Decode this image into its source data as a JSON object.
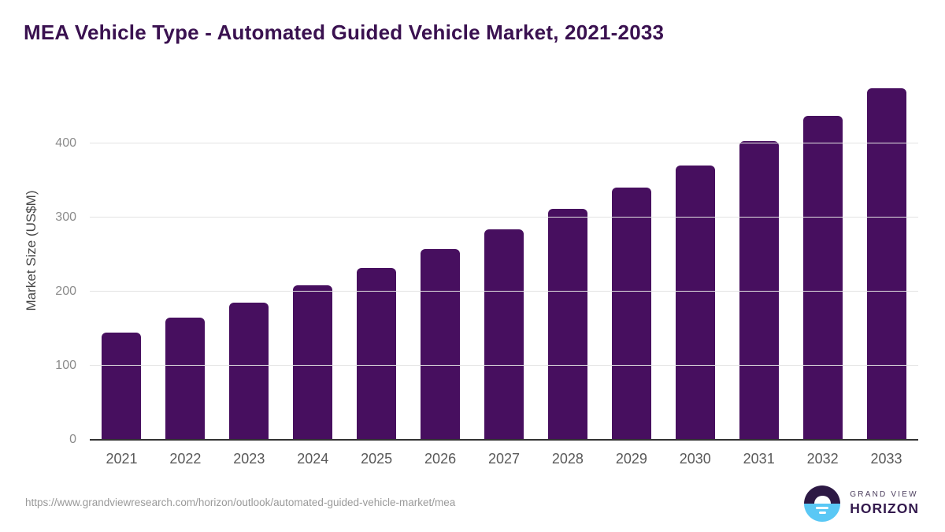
{
  "header": {
    "title": "MEA Vehicle Type - Automated Guided Vehicle Market, 2021-2033",
    "title_color": "#3a1150"
  },
  "chart_data": {
    "type": "bar",
    "title": "MEA Vehicle Type - Automated Guided Vehicle Market, 2021-2033",
    "categories": [
      "2021",
      "2022",
      "2023",
      "2024",
      "2025",
      "2026",
      "2027",
      "2028",
      "2029",
      "2030",
      "2031",
      "2032",
      "2033"
    ],
    "values": [
      145,
      165,
      185,
      208,
      232,
      257,
      284,
      311,
      340,
      370,
      403,
      437,
      474
    ],
    "xlabel": "",
    "ylabel": "Market Size (US$M)",
    "yticks": [
      0,
      100,
      200,
      300,
      400
    ],
    "ylim": [
      0,
      491
    ],
    "grid": "horizontal-only",
    "legend": "none",
    "bar_color": "#470f5f",
    "gridline_color": "#e3e3e3",
    "axis_line_color": "#333333"
  },
  "footer": {
    "source_url": "https://www.grandviewresearch.com/horizon/outlook/automated-guided-vehicle-market/mea",
    "logo": {
      "icon": "sunrise-horizon-icon",
      "line1": "GRAND VIEW",
      "line2": "HORIZON",
      "purple": "#2d1944",
      "blue": "#5ac8f5",
      "text_color1": "#4a3c5c",
      "text_color2": "#33194d"
    }
  }
}
